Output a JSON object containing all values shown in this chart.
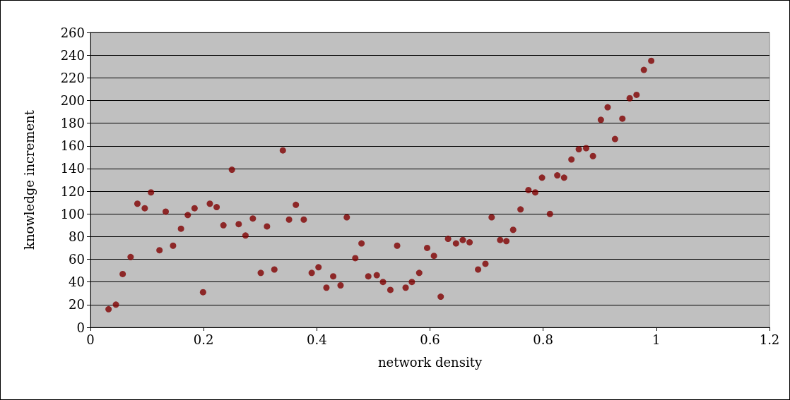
{
  "chart_data": {
    "type": "scatter",
    "xlabel": "network density",
    "ylabel": "knowledge increment",
    "x": [
      0.032,
      0.045,
      0.057,
      0.071,
      0.083,
      0.096,
      0.107,
      0.122,
      0.133,
      0.146,
      0.16,
      0.172,
      0.184,
      0.199,
      0.211,
      0.223,
      0.235,
      0.25,
      0.262,
      0.274,
      0.287,
      0.301,
      0.312,
      0.325,
      0.34,
      0.351,
      0.363,
      0.377,
      0.391,
      0.403,
      0.417,
      0.429,
      0.442,
      0.453,
      0.468,
      0.479,
      0.491,
      0.506,
      0.517,
      0.53,
      0.542,
      0.557,
      0.568,
      0.581,
      0.595,
      0.607,
      0.619,
      0.632,
      0.646,
      0.658,
      0.67,
      0.685,
      0.698,
      0.709,
      0.724,
      0.735,
      0.747,
      0.76,
      0.774,
      0.786,
      0.798,
      0.812,
      0.825,
      0.837,
      0.85,
      0.863,
      0.876,
      0.888,
      0.902,
      0.914,
      0.927,
      0.94,
      0.953,
      0.965,
      0.978,
      0.991
    ],
    "series": [
      {
        "color": "#800000",
        "values": [
          16,
          20,
          47,
          62,
          109,
          105,
          119,
          68,
          102,
          72,
          87,
          99,
          105,
          31,
          109,
          106,
          90,
          139,
          91,
          81,
          96,
          48,
          89,
          51,
          156,
          95,
          108,
          95,
          48,
          53,
          35,
          45,
          37,
          97,
          61,
          74,
          45,
          46,
          40,
          33,
          72,
          35,
          40,
          48,
          70,
          63,
          27,
          78,
          74,
          77,
          75,
          51,
          56,
          97,
          77,
          76,
          86,
          104,
          121,
          119,
          132,
          100,
          134,
          132,
          148,
          157,
          158,
          151,
          183,
          194,
          166,
          184,
          202,
          205,
          227,
          235
        ]
      }
    ],
    "xlim": [
      0,
      1.2
    ],
    "xticks": [
      0,
      0.2,
      0.4,
      0.6,
      0.8,
      1,
      1.2
    ],
    "ylim": [
      0,
      260
    ],
    "yticks": [
      0,
      20,
      40,
      60,
      80,
      100,
      120,
      140,
      160,
      180,
      200,
      220,
      240,
      260
    ],
    "grid": "y",
    "marker": "circle"
  }
}
